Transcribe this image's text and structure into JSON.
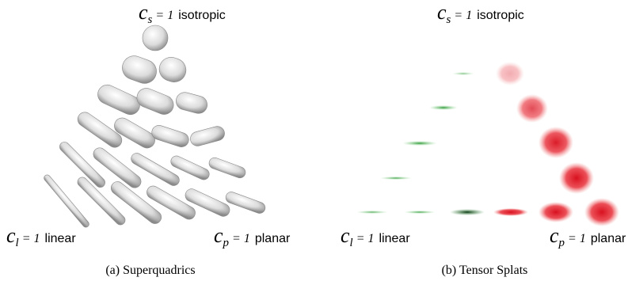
{
  "panels": [
    {
      "top": {
        "symbol": "c",
        "subscript": "s",
        "equals": "= 1",
        "word": "isotropic"
      },
      "left": {
        "symbol": "c",
        "subscript": "l",
        "equals": "= 1",
        "word": "linear"
      },
      "right": {
        "symbol": "c",
        "subscript": "p",
        "equals": "= 1",
        "word": "planar"
      },
      "caption": "(a) Superquadrics"
    },
    {
      "top": {
        "symbol": "c",
        "subscript": "s",
        "equals": "= 1",
        "word": "isotropic"
      },
      "left": {
        "symbol": "c",
        "subscript": "l",
        "equals": "= 1",
        "word": "linear"
      },
      "right": {
        "symbol": "c",
        "subscript": "p",
        "equals": "= 1",
        "word": "planar"
      },
      "caption": "(b) Tensor Splats"
    }
  ]
}
